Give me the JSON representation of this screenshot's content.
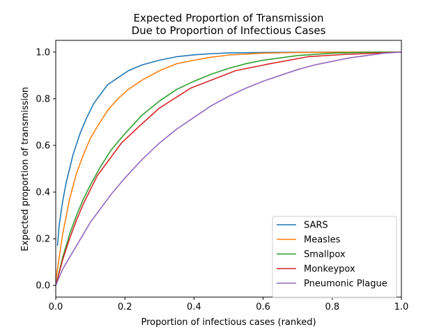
{
  "chart_data": {
    "type": "line",
    "title_lines": [
      "Expected Proportion of Transmission",
      "Due to Proportion of Infectious Cases"
    ],
    "xlabel": "Proportion of infectious cases (ranked)",
    "ylabel": "Expected proportion of transmission",
    "xlim": [
      0,
      1
    ],
    "ylim": [
      -0.05,
      1.05
    ],
    "xticks": [
      0.0,
      0.2,
      0.4,
      0.6,
      0.8,
      1.0
    ],
    "xtick_labels": [
      "0.0",
      "0.2",
      "0.4",
      "0.6",
      "0.8",
      "1.0"
    ],
    "yticks": [
      0.0,
      0.2,
      0.4,
      0.6,
      0.8,
      1.0
    ],
    "ytick_labels": [
      "0.0",
      "0.2",
      "0.4",
      "0.6",
      "0.8",
      "1.0"
    ],
    "grid": false,
    "legend_position": "lower-right",
    "series": [
      {
        "name": "SARS",
        "color": "#1f77b4",
        "x": [
          0.005,
          0.01,
          0.02,
          0.03,
          0.04,
          0.05,
          0.07,
          0.09,
          0.11,
          0.13,
          0.15,
          0.18,
          0.21,
          0.25,
          0.3,
          0.35,
          0.4,
          0.45,
          0.5,
          0.6,
          0.7,
          0.8,
          0.9,
          1.0
        ],
        "y": [
          0.17,
          0.26,
          0.36,
          0.44,
          0.5,
          0.56,
          0.65,
          0.72,
          0.78,
          0.82,
          0.86,
          0.89,
          0.92,
          0.945,
          0.965,
          0.98,
          0.988,
          0.993,
          0.996,
          0.998,
          0.999,
          0.9995,
          1.0,
          1.0
        ]
      },
      {
        "name": "Measles",
        "color": "#ff7f0e",
        "x": [
          0.0,
          0.01,
          0.02,
          0.04,
          0.06,
          0.08,
          0.1,
          0.12,
          0.15,
          0.18,
          0.21,
          0.25,
          0.3,
          0.35,
          0.4,
          0.45,
          0.5,
          0.6,
          0.7,
          0.8,
          0.9,
          1.0
        ],
        "y": [
          0.02,
          0.12,
          0.22,
          0.37,
          0.48,
          0.56,
          0.63,
          0.68,
          0.75,
          0.8,
          0.84,
          0.88,
          0.92,
          0.95,
          0.965,
          0.978,
          0.987,
          0.995,
          0.998,
          0.999,
          1.0,
          1.0
        ]
      },
      {
        "name": "Smallpox",
        "color": "#2ca02c",
        "x": [
          0.0,
          0.02,
          0.04,
          0.06,
          0.08,
          0.1,
          0.13,
          0.16,
          0.2,
          0.25,
          0.3,
          0.35,
          0.4,
          0.45,
          0.5,
          0.55,
          0.6,
          0.7,
          0.8,
          0.9,
          1.0
        ],
        "y": [
          0.0,
          0.12,
          0.22,
          0.3,
          0.37,
          0.43,
          0.51,
          0.58,
          0.65,
          0.73,
          0.79,
          0.84,
          0.875,
          0.905,
          0.93,
          0.95,
          0.965,
          0.985,
          0.995,
          0.999,
          1.0
        ]
      },
      {
        "name": "Monkeypox",
        "color": "#d62728",
        "x": [
          0.0,
          0.02,
          0.04,
          0.06,
          0.08,
          0.1,
          0.12,
          0.14,
          0.16,
          0.19,
          0.24,
          0.3,
          0.39,
          0.52,
          0.62,
          0.73,
          0.84,
          0.92,
          1.0
        ],
        "y": [
          0.0,
          0.11,
          0.2,
          0.28,
          0.35,
          0.41,
          0.47,
          0.51,
          0.55,
          0.61,
          0.68,
          0.76,
          0.845,
          0.92,
          0.95,
          0.98,
          0.99,
          0.995,
          1.0
        ]
      },
      {
        "name": "Pneumonic Plague",
        "color": "#9467bd",
        "x": [
          0.0,
          0.02,
          0.04,
          0.06,
          0.08,
          0.1,
          0.13,
          0.16,
          0.2,
          0.25,
          0.3,
          0.35,
          0.4,
          0.45,
          0.5,
          0.55,
          0.6,
          0.65,
          0.7,
          0.75,
          0.8,
          0.85,
          0.9,
          0.95,
          1.0
        ],
        "y": [
          0.0,
          0.07,
          0.12,
          0.17,
          0.22,
          0.27,
          0.33,
          0.39,
          0.46,
          0.54,
          0.61,
          0.67,
          0.72,
          0.77,
          0.81,
          0.845,
          0.875,
          0.9,
          0.925,
          0.945,
          0.96,
          0.975,
          0.985,
          0.995,
          1.0
        ]
      }
    ]
  }
}
